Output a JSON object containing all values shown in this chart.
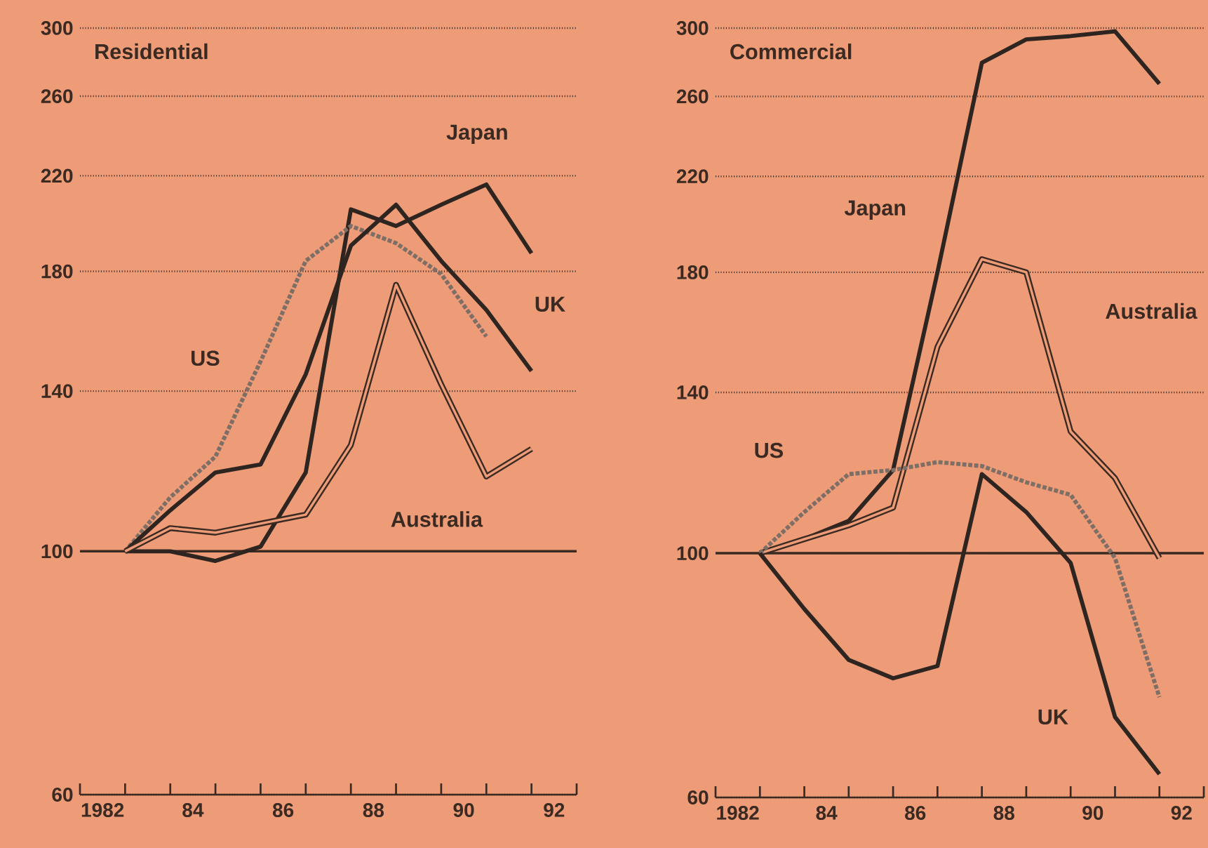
{
  "chart_data": [
    {
      "type": "line",
      "title": "Residential",
      "log": "y",
      "grid": "y",
      "x": [
        1982.5,
        1983.5,
        1984.5,
        1985.5,
        1986.5,
        1987.5,
        1988.5,
        1989.5,
        1990.5,
        1991.5
      ],
      "xlim": [
        1981.5,
        1992.5
      ],
      "ylim": [
        60,
        300
      ],
      "xticks": [
        {
          "value": 1981.5,
          "label": null
        },
        {
          "value": 1982,
          "label": "1982"
        },
        {
          "value": 1982.5,
          "label": null
        },
        {
          "value": 1983.5,
          "label": null
        },
        {
          "value": 1984,
          "label": "84"
        },
        {
          "value": 1984.5,
          "label": null
        },
        {
          "value": 1985.5,
          "label": null
        },
        {
          "value": 1986,
          "label": "86"
        },
        {
          "value": 1986.5,
          "label": null
        },
        {
          "value": 1987.5,
          "label": null
        },
        {
          "value": 1988,
          "label": "88"
        },
        {
          "value": 1988.5,
          "label": null
        },
        {
          "value": 1989.5,
          "label": null
        },
        {
          "value": 1990,
          "label": "90"
        },
        {
          "value": 1990.5,
          "label": null
        },
        {
          "value": 1991.5,
          "label": null
        },
        {
          "value": 1992,
          "label": "92"
        },
        {
          "value": 1992.5,
          "label": null
        }
      ],
      "yticks": [
        60,
        100,
        140,
        180,
        220,
        260,
        300
      ],
      "ref_lines": [
        {
          "axis": "y",
          "value": 100,
          "color": "#3a2a22"
        }
      ],
      "series": [
        {
          "name": "Japan",
          "color": "#2e2420",
          "line_style": "solid",
          "values": [
            100,
            100,
            98,
            101,
            118,
            205,
            198,
            207,
            216,
            187
          ]
        },
        {
          "name": "US",
          "color": "#7d6e66",
          "line_style": "dotted",
          "values": [
            100,
            112,
            122,
            149,
            184,
            198,
            191,
            179,
            157,
            null
          ]
        },
        {
          "name": "UK",
          "color": "#2e2420",
          "line_style": "solid",
          "values": [
            100,
            109,
            118,
            120,
            145,
            190,
            207,
            184,
            166,
            146
          ]
        },
        {
          "name": "Australia",
          "color": "#3a2a22",
          "values": [
            100,
            105,
            104,
            106,
            108,
            125,
            175,
            142,
            117,
            124
          ]
        }
      ]
    },
    {
      "type": "line",
      "title": "Commercial",
      "log": "y",
      "grid": "y",
      "x": [
        1982.5,
        1983.5,
        1984.5,
        1985.5,
        1986.5,
        1987.5,
        1988.5,
        1989.5,
        1990.5,
        1991.5
      ],
      "xlim": [
        1981.5,
        1992.5
      ],
      "ylim": [
        60,
        300
      ],
      "xticks": [
        {
          "value": 1981.5,
          "label": null
        },
        {
          "value": 1982,
          "label": "1982"
        },
        {
          "value": 1982.5,
          "label": null
        },
        {
          "value": 1983.5,
          "label": null
        },
        {
          "value": 1984,
          "label": "84"
        },
        {
          "value": 1984.5,
          "label": null
        },
        {
          "value": 1985.5,
          "label": null
        },
        {
          "value": 1986,
          "label": "86"
        },
        {
          "value": 1986.5,
          "label": null
        },
        {
          "value": 1987.5,
          "label": null
        },
        {
          "value": 1988,
          "label": "88"
        },
        {
          "value": 1988.5,
          "label": null
        },
        {
          "value": 1989.5,
          "label": null
        },
        {
          "value": 1990,
          "label": "90"
        },
        {
          "value": 1990.5,
          "label": null
        },
        {
          "value": 1991.5,
          "label": null
        },
        {
          "value": 1992,
          "label": "92"
        },
        {
          "value": 1992.5,
          "label": null
        }
      ],
      "yticks": [
        60,
        100,
        140,
        180,
        220,
        260,
        300
      ],
      "ref_lines": [
        {
          "axis": "y",
          "value": 100,
          "color": "#3a2a22"
        }
      ],
      "series": [
        {
          "name": "Japan",
          "color": "#2e2420",
          "line_style": "solid",
          "values": [
            100,
            103,
            107,
            119,
            180,
            279,
            293,
            295,
            298,
            267
          ]
        },
        {
          "name": "Australia",
          "color": "#3a2a22",
          "values": [
            100,
            103,
            106,
            110,
            154,
            185,
            180,
            129,
            117,
            99
          ]
        },
        {
          "name": "US",
          "color": "#7d6e66",
          "line_style": "dotted",
          "values": [
            100,
            109,
            118,
            119,
            121,
            120,
            116,
            113,
            99,
            74
          ]
        },
        {
          "name": "UK",
          "color": "#2e2420",
          "line_style": "solid",
          "values": [
            100,
            89,
            80,
            77,
            79,
            118,
            109,
            98,
            71,
            63
          ]
        }
      ]
    }
  ]
}
